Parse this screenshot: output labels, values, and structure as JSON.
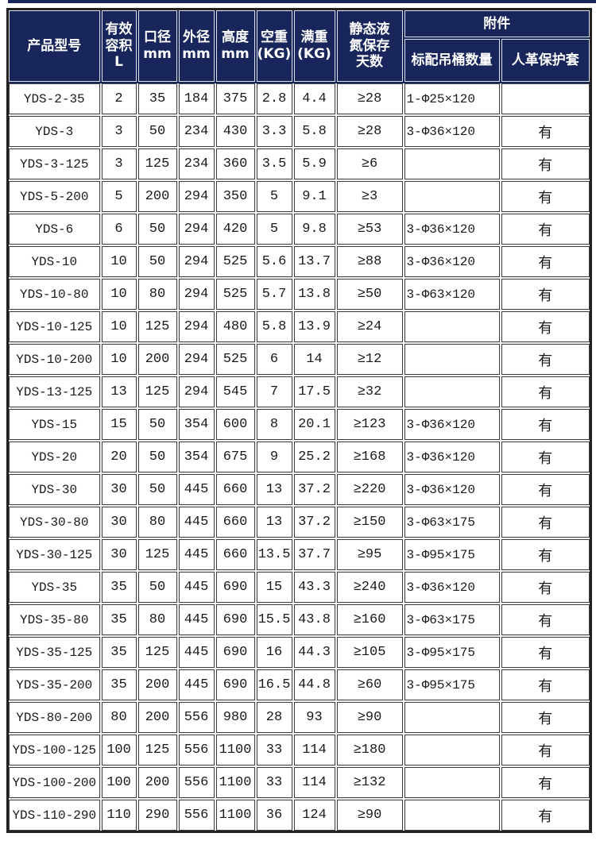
{
  "page": {
    "kind": "product-specification-table",
    "series": "YDS"
  },
  "colors": {
    "header_bg": "#18265c",
    "header_text": "#ffffff",
    "cell_border": "#3d3d3d",
    "outer_border": "#222222"
  },
  "table": {
    "accessories_group_label": "附件",
    "columns": [
      {
        "key": "model",
        "label": "产品型号"
      },
      {
        "key": "effective-volume",
        "label": "有效\n容积\nL"
      },
      {
        "key": "caliber",
        "label": "口径\nmm"
      },
      {
        "key": "outer-diameter",
        "label": "外径\nmm"
      },
      {
        "key": "height",
        "label": "高度\nmm"
      },
      {
        "key": "empty-weight",
        "label": "空重\n(KG)"
      },
      {
        "key": "full-weight",
        "label": "满重\n(KG)"
      },
      {
        "key": "static-days",
        "label": "静态液\n氮保存\n天数"
      },
      {
        "key": "bucket-qty",
        "label": "标配吊桶数量"
      },
      {
        "key": "leather-cover",
        "label": "人革保护套"
      }
    ],
    "rows": [
      [
        "YDS-2-35",
        "2",
        "35",
        "184",
        "375",
        "2.8",
        "4.4",
        "≥28",
        "1-Φ25×120",
        ""
      ],
      [
        "YDS-3",
        "3",
        "50",
        "234",
        "430",
        "3.3",
        "5.8",
        "≥28",
        "3-Φ36×120",
        "有"
      ],
      [
        "YDS-3-125",
        "3",
        "125",
        "234",
        "360",
        "3.5",
        "5.9",
        "≥6",
        "",
        "有"
      ],
      [
        "YDS-5-200",
        "5",
        "200",
        "294",
        "350",
        "5",
        "9.1",
        "≥3",
        "",
        "有"
      ],
      [
        "YDS-6",
        "6",
        "50",
        "294",
        "420",
        "5",
        "9.8",
        "≥53",
        "3-Φ36×120",
        "有"
      ],
      [
        "YDS-10",
        "10",
        "50",
        "294",
        "525",
        "5.6",
        "13.7",
        "≥88",
        "3-Φ36×120",
        "有"
      ],
      [
        "YDS-10-80",
        "10",
        "80",
        "294",
        "525",
        "5.7",
        "13.8",
        "≥50",
        "3-Φ63×120",
        "有"
      ],
      [
        "YDS-10-125",
        "10",
        "125",
        "294",
        "480",
        "5.8",
        "13.9",
        "≥24",
        "",
        "有"
      ],
      [
        "YDS-10-200",
        "10",
        "200",
        "294",
        "525",
        "6",
        "14",
        "≥12",
        "",
        "有"
      ],
      [
        "YDS-13-125",
        "13",
        "125",
        "294",
        "545",
        "7",
        "17.5",
        "≥32",
        "",
        "有"
      ],
      [
        "YDS-15",
        "15",
        "50",
        "354",
        "600",
        "8",
        "20.1",
        "≥123",
        "3-Φ36×120",
        "有"
      ],
      [
        "YDS-20",
        "20",
        "50",
        "354",
        "675",
        "9",
        "25.2",
        "≥168",
        "3-Φ36×120",
        "有"
      ],
      [
        "YDS-30",
        "30",
        "50",
        "445",
        "660",
        "13",
        "37.2",
        "≥220",
        "3-Φ36×120",
        "有"
      ],
      [
        "YDS-30-80",
        "30",
        "80",
        "445",
        "660",
        "13",
        "37.2",
        "≥150",
        "3-Φ63×175",
        "有"
      ],
      [
        "YDS-30-125",
        "30",
        "125",
        "445",
        "660",
        "13.5",
        "37.7",
        "≥95",
        "3-Φ95×175",
        "有"
      ],
      [
        "YDS-35",
        "35",
        "50",
        "445",
        "690",
        "15",
        "43.3",
        "≥240",
        "3-Φ36×120",
        "有"
      ],
      [
        "YDS-35-80",
        "35",
        "80",
        "445",
        "690",
        "15.5",
        "43.8",
        "≥160",
        "3-Φ63×175",
        "有"
      ],
      [
        "YDS-35-125",
        "35",
        "125",
        "445",
        "690",
        "16",
        "44.3",
        "≥105",
        "3-Φ95×175",
        "有"
      ],
      [
        "YDS-35-200",
        "35",
        "200",
        "445",
        "690",
        "16.5",
        "44.8",
        "≥60",
        "3-Φ95×175",
        "有"
      ],
      [
        "YDS-80-200",
        "80",
        "200",
        "556",
        "980",
        "28",
        "93",
        "≥90",
        "",
        "有"
      ],
      [
        "YDS-100-125",
        "100",
        "125",
        "556",
        "1100",
        "33",
        "114",
        "≥180",
        "",
        "有"
      ],
      [
        "YDS-100-200",
        "100",
        "200",
        "556",
        "1100",
        "33",
        "114",
        "≥132",
        "",
        "有"
      ],
      [
        "YDS-110-290",
        "110",
        "290",
        "556",
        "1100",
        "36",
        "124",
        "≥90",
        "",
        "有"
      ]
    ]
  }
}
